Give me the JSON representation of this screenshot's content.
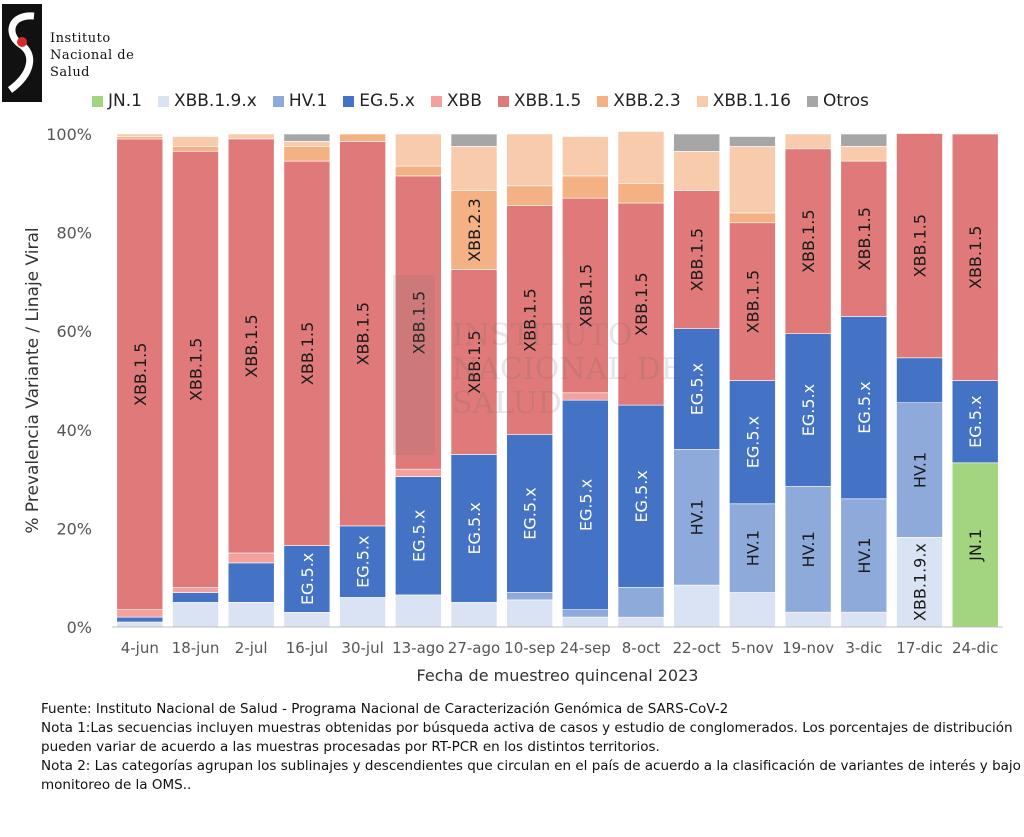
{
  "header": {
    "org_lines": [
      "Instituto",
      "Nacional de",
      "Salud"
    ]
  },
  "chart_data": {
    "type": "bar",
    "stacked": true,
    "percent": true,
    "xlabel": "Fecha de muestreo quincenal 2023",
    "ylabel": "% Prevalencia Variante / Linaje Viral",
    "ylim": [
      0,
      100
    ],
    "y_ticks": [
      "0%",
      "20%",
      "40%",
      "60%",
      "80%",
      "100%"
    ],
    "grid": false,
    "legend_position": "top",
    "watermark_text": [
      "Instituto",
      "Nacional de",
      "Salud"
    ],
    "categories": [
      "4-jun",
      "18-jun",
      "2-jul",
      "16-jul",
      "30-jul",
      "13-ago",
      "27-ago",
      "10-sep",
      "24-sep",
      "8-oct",
      "22-oct",
      "5-nov",
      "19-nov",
      "3-dic",
      "17-dic",
      "24-dic"
    ],
    "series": [
      {
        "name": "JN.1",
        "color": "#a3d47f",
        "values": [
          0,
          0,
          0,
          0,
          0,
          0,
          0,
          0,
          0,
          0,
          0,
          0,
          0,
          0,
          0,
          33.3
        ]
      },
      {
        "name": "XBB.1.9.x",
        "color": "#dae3f3",
        "values": [
          1,
          5,
          5,
          3,
          6,
          6.5,
          5,
          5.5,
          2,
          2,
          8.5,
          7,
          3,
          3,
          18.2,
          0
        ]
      },
      {
        "name": "HV.1",
        "color": "#8eaadb",
        "values": [
          0,
          0,
          0,
          0,
          0,
          0,
          0,
          1.5,
          1.5,
          6,
          27.5,
          18,
          25.5,
          23,
          27.3,
          0
        ]
      },
      {
        "name": "EG.5.x",
        "color": "#4472c4",
        "values": [
          1,
          2,
          8,
          13.5,
          14.5,
          24,
          30,
          32,
          42.5,
          37,
          24.5,
          25,
          31,
          37,
          9.1,
          16.7
        ]
      },
      {
        "name": "XBB",
        "color": "#f4a09c",
        "values": [
          1.5,
          1,
          2,
          0,
          0,
          1.5,
          0,
          0,
          1.5,
          0,
          0,
          0,
          0,
          0,
          0,
          0
        ]
      },
      {
        "name": "XBB.1.5",
        "color": "#e07a7a",
        "values": [
          95.5,
          88.5,
          84,
          78,
          78,
          59.5,
          37.5,
          46.5,
          39.5,
          41,
          28,
          32,
          37.5,
          31.5,
          45.5,
          50
        ]
      },
      {
        "name": "XBB.2.3",
        "color": "#f4b183",
        "values": [
          0.5,
          1,
          0,
          3,
          1.5,
          2,
          16,
          4,
          4.5,
          4,
          0,
          2,
          0,
          0,
          0,
          0
        ]
      },
      {
        "name": "XBB.1.16",
        "color": "#f8cbad",
        "values": [
          0.5,
          2,
          1,
          1,
          0,
          6.5,
          9,
          10.5,
          8,
          10.5,
          8,
          13.5,
          3,
          3,
          0,
          0
        ]
      },
      {
        "name": "Otros",
        "color": "#a6a6a6",
        "values": [
          0,
          0,
          0,
          1.5,
          0,
          0,
          2.5,
          0,
          0,
          0,
          3.5,
          2,
          0,
          2.5,
          0,
          0
        ]
      }
    ],
    "bar_labels": [
      {
        "bar": 0,
        "series": "XBB.1.5",
        "text": "XBB.1.5"
      },
      {
        "bar": 1,
        "series": "XBB.1.5",
        "text": "XBB.1.5"
      },
      {
        "bar": 2,
        "series": "XBB.1.5",
        "text": "XBB.1.5"
      },
      {
        "bar": 3,
        "series": "EG.5.x",
        "text": "EG.5.x"
      },
      {
        "bar": 3,
        "series": "XBB.1.5",
        "text": "XBB.1.5"
      },
      {
        "bar": 4,
        "series": "EG.5.x",
        "text": "EG.5.x"
      },
      {
        "bar": 4,
        "series": "XBB.1.5",
        "text": "XBB.1.5"
      },
      {
        "bar": 5,
        "series": "EG.5.x",
        "text": "EG.5.x"
      },
      {
        "bar": 5,
        "series": "XBB.1.5",
        "text": "XBB.1.5"
      },
      {
        "bar": 6,
        "series": "EG.5.x",
        "text": "EG.5.x"
      },
      {
        "bar": 6,
        "series": "XBB.1.5",
        "text": "XBB.1.5"
      },
      {
        "bar": 6,
        "series": "XBB.2.3",
        "text": "XBB.2.3"
      },
      {
        "bar": 7,
        "series": "EG.5.x",
        "text": "EG.5.x"
      },
      {
        "bar": 7,
        "series": "XBB.1.5",
        "text": "XBB.1.5"
      },
      {
        "bar": 8,
        "series": "EG.5.x",
        "text": "EG.5.x"
      },
      {
        "bar": 8,
        "series": "XBB.1.5",
        "text": "XBB.1.5"
      },
      {
        "bar": 9,
        "series": "EG.5.x",
        "text": "EG.5.x"
      },
      {
        "bar": 9,
        "series": "XBB.1.5",
        "text": "XBB.1.5"
      },
      {
        "bar": 10,
        "series": "HV.1",
        "text": "HV.1"
      },
      {
        "bar": 10,
        "series": "EG.5.x",
        "text": "EG.5.x"
      },
      {
        "bar": 10,
        "series": "XBB.1.5",
        "text": "XBB.1.5"
      },
      {
        "bar": 11,
        "series": "HV.1",
        "text": "HV.1"
      },
      {
        "bar": 11,
        "series": "EG.5.x",
        "text": "EG.5.x"
      },
      {
        "bar": 11,
        "series": "XBB.1.5",
        "text": "XBB.1.5"
      },
      {
        "bar": 12,
        "series": "HV.1",
        "text": "HV.1"
      },
      {
        "bar": 12,
        "series": "EG.5.x",
        "text": "EG.5.x"
      },
      {
        "bar": 12,
        "series": "XBB.1.5",
        "text": "XBB.1.5"
      },
      {
        "bar": 13,
        "series": "HV.1",
        "text": "HV.1"
      },
      {
        "bar": 13,
        "series": "EG.5.x",
        "text": "EG.5.x"
      },
      {
        "bar": 13,
        "series": "XBB.1.5",
        "text": "XBB.1.5"
      },
      {
        "bar": 14,
        "series": "XBB.1.9.x",
        "text": "XBB.1.9.x"
      },
      {
        "bar": 14,
        "series": "HV.1",
        "text": "HV.1"
      },
      {
        "bar": 14,
        "series": "XBB.1.5",
        "text": "XBB.1.5"
      },
      {
        "bar": 15,
        "series": "JN.1",
        "text": "JN.1"
      },
      {
        "bar": 15,
        "series": "EG.5.x",
        "text": "EG.5.x"
      },
      {
        "bar": 15,
        "series": "XBB.1.5",
        "text": "XBB.1.5"
      }
    ]
  },
  "notes": {
    "source": "Fuente: Instituto Nacional de Salud - Programa Nacional de Caracterización Genómica de SARS-CoV-2",
    "note1": "Nota 1:Las secuencias incluyen muestras obtenidas por búsqueda activa de casos y estudio de conglomerados. Los porcentajes de distribución pueden variar de acuerdo a las muestras procesadas por RT-PCR en los distintos territorios.",
    "note2": "Nota 2: Las categorías agrupan los sublinajes y descendientes que circulan en el país de acuerdo a la clasificación de variantes de interés y bajo monitoreo de la OMS.."
  }
}
